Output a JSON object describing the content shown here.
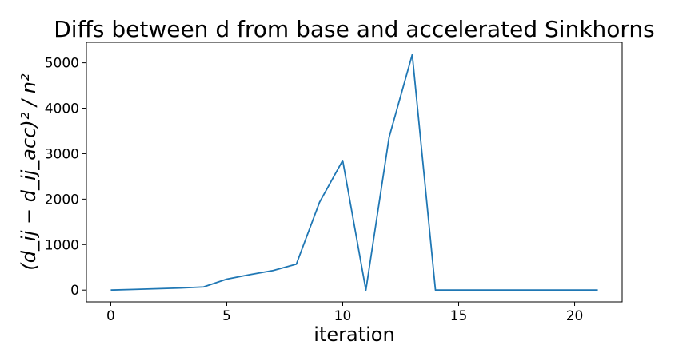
{
  "chart_data": {
    "type": "line",
    "title": "Diffs between d from base and accelerated Sinkhorns",
    "xlabel": "iteration",
    "ylabel": "(d_ij − d_ij_acc)² / n²",
    "xlim": [
      -1.05,
      22.05
    ],
    "ylim": [
      -260,
      5450
    ],
    "xticks": [
      0,
      5,
      10,
      15,
      20
    ],
    "xtick_labels": [
      "0",
      "5",
      "10",
      "15",
      "20"
    ],
    "yticks": [
      0,
      1000,
      2000,
      3000,
      4000,
      5000
    ],
    "ytick_labels": [
      "0",
      "1000",
      "2000",
      "3000",
      "4000",
      "5000"
    ],
    "grid": false,
    "series": [
      {
        "color": "#1f77b4",
        "x": [
          0,
          1,
          2,
          3,
          4,
          5,
          6,
          7,
          8,
          9,
          10,
          11,
          12,
          13,
          14,
          15,
          16,
          17,
          18,
          19,
          20,
          21
        ],
        "y": [
          0,
          15,
          30,
          45,
          70,
          240,
          340,
          430,
          570,
          1930,
          2850,
          0,
          3360,
          5180,
          0,
          0,
          0,
          0,
          0,
          0,
          0,
          0
        ]
      }
    ]
  }
}
